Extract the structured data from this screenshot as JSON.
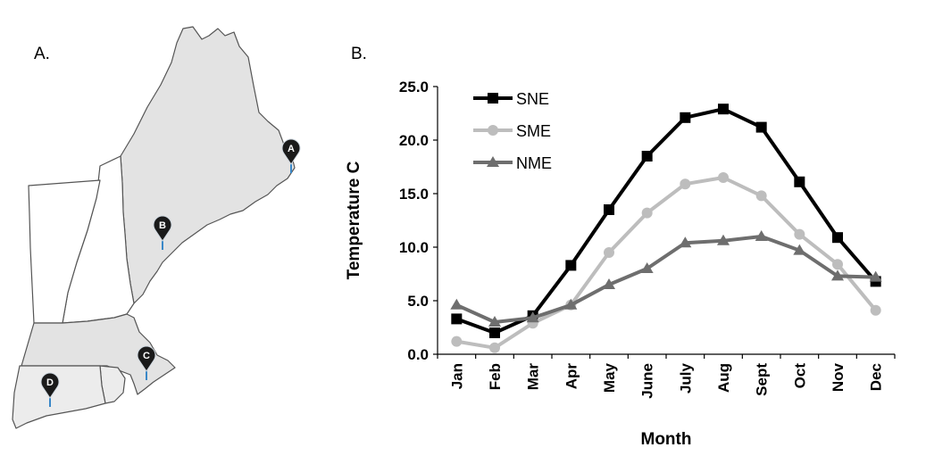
{
  "panels": {
    "a_label": "A.",
    "b_label": "B."
  },
  "map": {
    "markers": [
      {
        "id": "A",
        "label": "A"
      },
      {
        "id": "B",
        "label": "B"
      },
      {
        "id": "C",
        "label": "C"
      },
      {
        "id": "D",
        "label": "D"
      }
    ],
    "colors": {
      "state_fill": "#e3e3e3",
      "border": "#555555",
      "marker": "#1a1a1a",
      "marker_tip": "#3a88c8"
    }
  },
  "chart_data": {
    "type": "line",
    "xlabel": "Month",
    "ylabel": "Temperature C",
    "categories": [
      "Jan",
      "Feb",
      "Mar",
      "Apr",
      "May",
      "June",
      "July",
      "Aug",
      "Sept",
      "Oct",
      "Nov",
      "Dec"
    ],
    "ylim": [
      0,
      25
    ],
    "yticks": [
      "0.0",
      "5.0",
      "10.0",
      "15.0",
      "20.0",
      "25.0"
    ],
    "grid": false,
    "legend_position": "top-left",
    "series": [
      {
        "name": "SNE",
        "marker": "square",
        "color": "#000000",
        "values": [
          3.3,
          2.0,
          3.6,
          8.3,
          13.5,
          18.5,
          22.1,
          22.9,
          21.2,
          16.1,
          10.9,
          6.8
        ]
      },
      {
        "name": "SME",
        "marker": "circle",
        "color": "#bdbdbd",
        "values": [
          1.2,
          0.6,
          2.9,
          4.6,
          9.5,
          13.2,
          15.9,
          16.5,
          14.8,
          11.2,
          8.4,
          4.1
        ]
      },
      {
        "name": "NME",
        "marker": "triangle",
        "color": "#6e6e6e",
        "values": [
          4.6,
          3.0,
          3.4,
          4.6,
          6.5,
          8.0,
          10.4,
          10.6,
          11.0,
          9.7,
          7.3,
          7.2
        ]
      }
    ]
  }
}
